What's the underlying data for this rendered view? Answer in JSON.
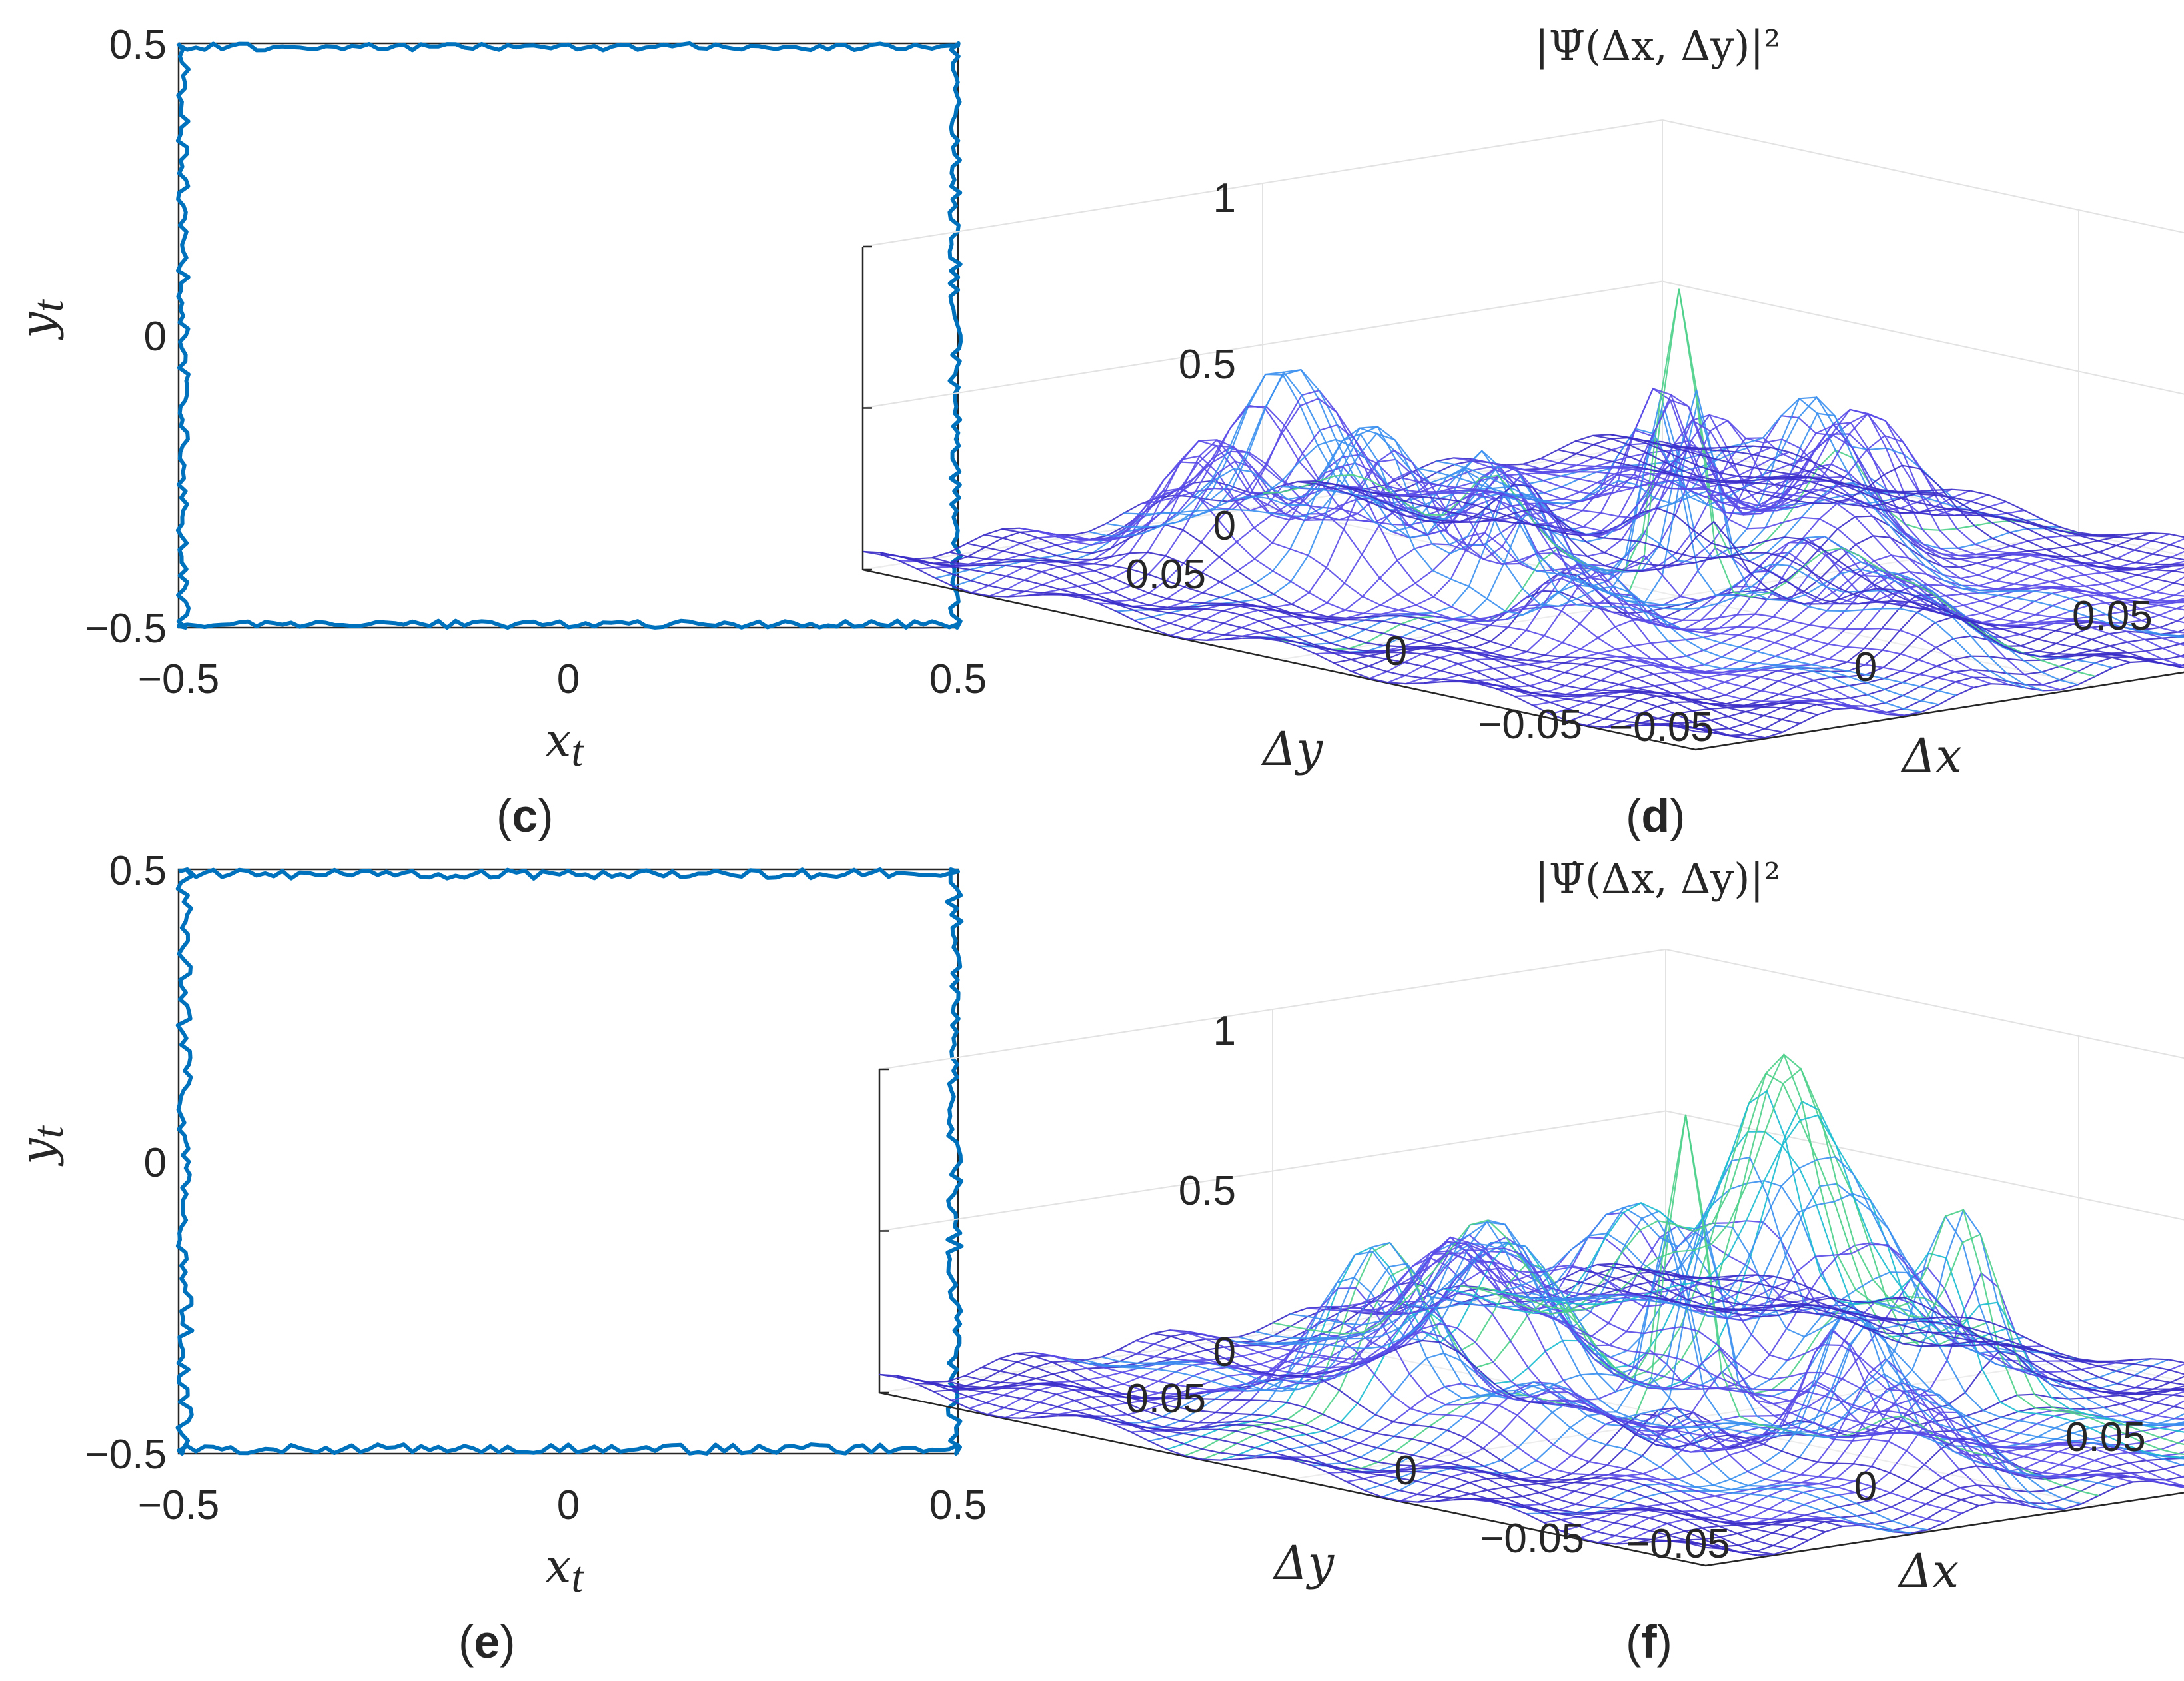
{
  "figure": {
    "panels": [
      {
        "id": "c",
        "label_open": "(",
        "label_letter": "c",
        "label_close": ")"
      },
      {
        "id": "d",
        "label_open": "(",
        "label_letter": "d",
        "label_close": ")"
      },
      {
        "id": "e",
        "label_open": "(",
        "label_letter": "e",
        "label_close": ")"
      },
      {
        "id": "f",
        "label_open": "(",
        "label_letter": "f",
        "label_close": ")"
      }
    ]
  },
  "chart_data": [
    {
      "panel": "c",
      "type": "line",
      "title": "",
      "xlabel_main": "x",
      "xlabel_sub": "t",
      "ylabel_main": "y",
      "ylabel_sub": "t",
      "xlim": [
        -0.5,
        0.5
      ],
      "ylim": [
        -0.5,
        0.5
      ],
      "xticks": [
        "−0.5",
        "0",
        "0.5"
      ],
      "yticks": [
        "−0.5",
        "0",
        "0.5"
      ],
      "series": [
        {
          "name": "trajectory",
          "color": "#0072BD",
          "shape": "square",
          "side": 1.0,
          "jitter": 0.012
        }
      ],
      "seed": 7
    },
    {
      "panel": "d",
      "type": "surface",
      "title": "|Ψ̇(Δx, Δy)|²",
      "xlabel": "Δx",
      "ylabel": "Δy",
      "zlim": [
        0,
        1
      ],
      "zticks": [
        "0",
        "0.5",
        "1"
      ],
      "xticks": [
        "−0.05",
        "0",
        "0.05"
      ],
      "yticks": [
        "−0.05",
        "0",
        "0.05"
      ],
      "peak_value": 0.92,
      "sidelobe_peak": 0.45,
      "colormap": [
        "#3b2ec8",
        "#5a4be8",
        "#3a8ff0",
        "#1bbcd0",
        "#4dd08a",
        "#f3e13a"
      ],
      "seed": 11
    },
    {
      "panel": "e",
      "type": "line",
      "title": "",
      "xlabel_main": "x",
      "xlabel_sub": "t",
      "ylabel_main": "y",
      "ylabel_sub": "t",
      "xlim": [
        -0.5,
        0.5
      ],
      "ylim": [
        -0.5,
        0.5
      ],
      "xticks": [
        "−0.5",
        "0",
        "0.5"
      ],
      "yticks": [
        "−0.5",
        "0",
        "0.5"
      ],
      "series": [
        {
          "name": "trajectory",
          "color": "#0072BD",
          "shape": "square",
          "side": 1.0,
          "jitter": 0.016
        }
      ],
      "seed": 19
    },
    {
      "panel": "f",
      "type": "surface",
      "title": "|Ψ̇(Δx, Δy)|²",
      "xlabel": "Δx",
      "ylabel": "Δy",
      "zlim": [
        0,
        1
      ],
      "zticks": [
        "0",
        "0.5",
        "1"
      ],
      "xticks": [
        "−0.05",
        "0",
        "0.05"
      ],
      "yticks": [
        "−0.05",
        "0",
        "0.05"
      ],
      "peak_value": 0.91,
      "sidelobe_peak": 0.6,
      "colormap": [
        "#3b2ec8",
        "#5a4be8",
        "#3a8ff0",
        "#1bbcd0",
        "#4dd08a",
        "#f3e13a"
      ],
      "seed": 23
    }
  ]
}
